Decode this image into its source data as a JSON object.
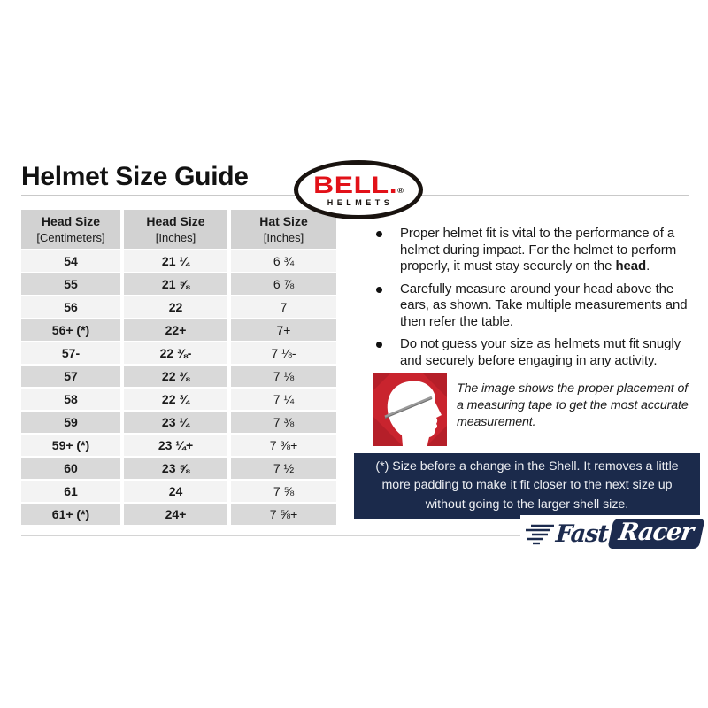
{
  "header": {
    "title": "Helmet Size Guide"
  },
  "bell_logo": {
    "brand": "BELL.",
    "reg": "®",
    "subtitle": "HELMETS"
  },
  "table": {
    "headers": [
      {
        "line1": "Head Size",
        "line2": "[Centimeters]"
      },
      {
        "line1": "Head Size",
        "line2": "[Inches]"
      },
      {
        "line1": "Hat Size",
        "line2": "[Inches]"
      }
    ],
    "rows": [
      [
        "54",
        "21 ¼",
        "6 ¾"
      ],
      [
        "55",
        "21 ⅝",
        "6 ⅞"
      ],
      [
        "56",
        "22",
        "7"
      ],
      [
        "56+ (*)",
        "22+",
        "7+"
      ],
      [
        "57-",
        "22 ⅜-",
        "7 ⅛-"
      ],
      [
        "57",
        "22 ⅜",
        "7 ⅛"
      ],
      [
        "58",
        "22 ¾",
        "7 ¼"
      ],
      [
        "59",
        "23 ¼",
        "7 ⅜"
      ],
      [
        "59+ (*)",
        "23 ¼+",
        "7 ⅜+"
      ],
      [
        "60",
        "23 ⅝",
        "7 ½"
      ],
      [
        "61",
        "24",
        "7 ⅝"
      ],
      [
        "61+ (*)",
        "24+",
        "7 ⅝+"
      ]
    ]
  },
  "bullets": [
    {
      "pre": "Proper helmet fit is vital to the performance of a helmet during impact. For the helmet to perform properly, it must stay securely on the ",
      "bold": "head",
      "post": "."
    },
    {
      "pre": "Carefully measure around your head above the ears, as shown. Take multiple measurements and then refer the table.",
      "bold": "",
      "post": ""
    },
    {
      "pre": "Do not guess your size as helmets mut fit snugly and securely before engaging in any activity.",
      "bold": "",
      "post": ""
    }
  ],
  "figure_caption": "The image shows the proper placement of a measuring tape to get the most accurate measurement.",
  "shell_note": "(*) Size before a change in the Shell. It removes a little more padding to make it fit closer to the next size up without going to the larger shell size.",
  "footer_logo": {
    "fast": "Fast",
    "racer": "Racer"
  },
  "colors": {
    "bell_red": "#e21118",
    "navy": "#1b2a4b",
    "figure_red": "#c9242e",
    "table_header_bg": "#d2d2d2",
    "table_row_light": "#f3f3f3",
    "table_row_dark": "#d9d9d9",
    "divider_gray": "#c9c9c9"
  }
}
